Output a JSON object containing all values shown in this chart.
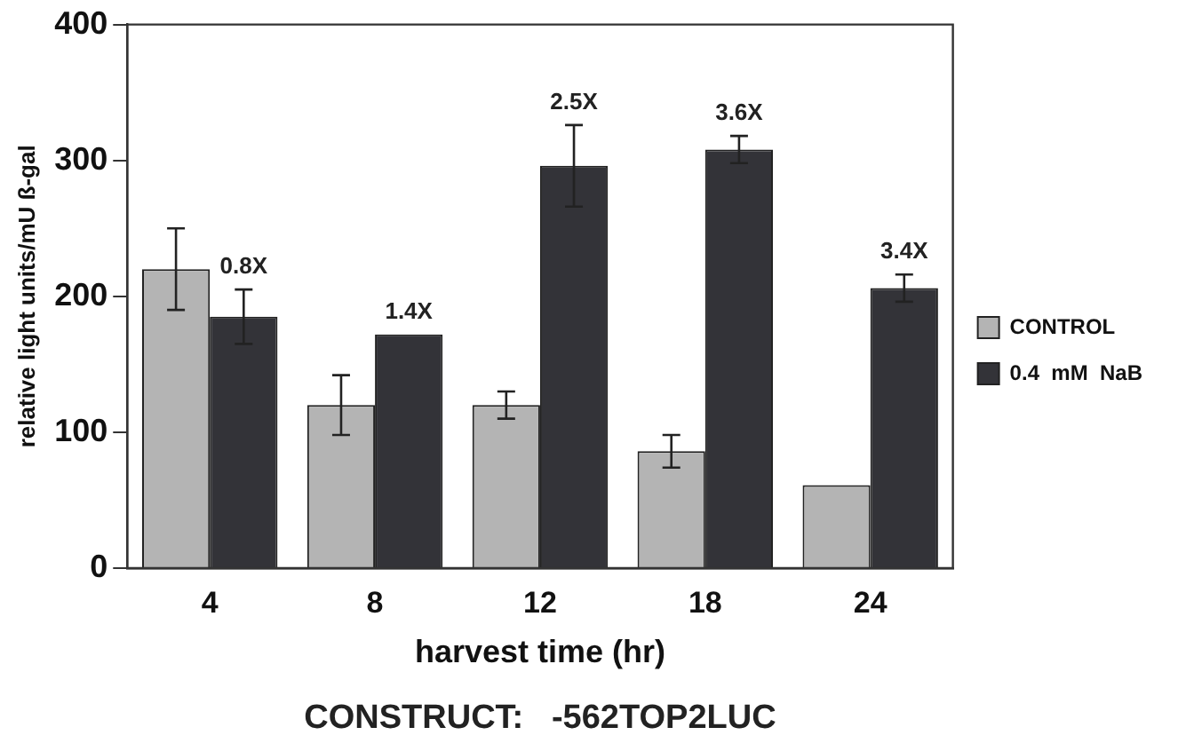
{
  "chart_data": {
    "type": "bar",
    "xlabel": "harvest time (hr)",
    "ylabel": "relative light units/mU ß-gal",
    "categories": [
      "4",
      "8",
      "12",
      "18",
      "24"
    ],
    "series": [
      {
        "name": "CONTROL",
        "color": "#b4b4b4",
        "values": [
          220,
          120,
          120,
          86,
          61
        ],
        "errors": [
          30,
          22,
          10,
          12,
          null
        ]
      },
      {
        "name": "0.4  mM  NaB",
        "color": "#333338",
        "values": [
          185,
          172,
          296,
          308,
          206
        ],
        "errors": [
          20,
          null,
          30,
          10,
          10
        ]
      }
    ],
    "ylim": [
      0,
      400
    ],
    "yticks": [
      0,
      100,
      200,
      300,
      400
    ],
    "grid": false,
    "legend": "right",
    "annotations": [
      {
        "text": "0.8X",
        "x": "4",
        "y": 185
      },
      {
        "text": "1.4X",
        "x": "8",
        "y": 172
      },
      {
        "text": "2.5X",
        "x": "12",
        "y": 296
      },
      {
        "text": "3.6X",
        "x": "18",
        "y": 308
      },
      {
        "text": "3.4X",
        "x": "24",
        "y": 206
      },
      "CONSTRUCT:   -562TOP2LUC"
    ]
  }
}
